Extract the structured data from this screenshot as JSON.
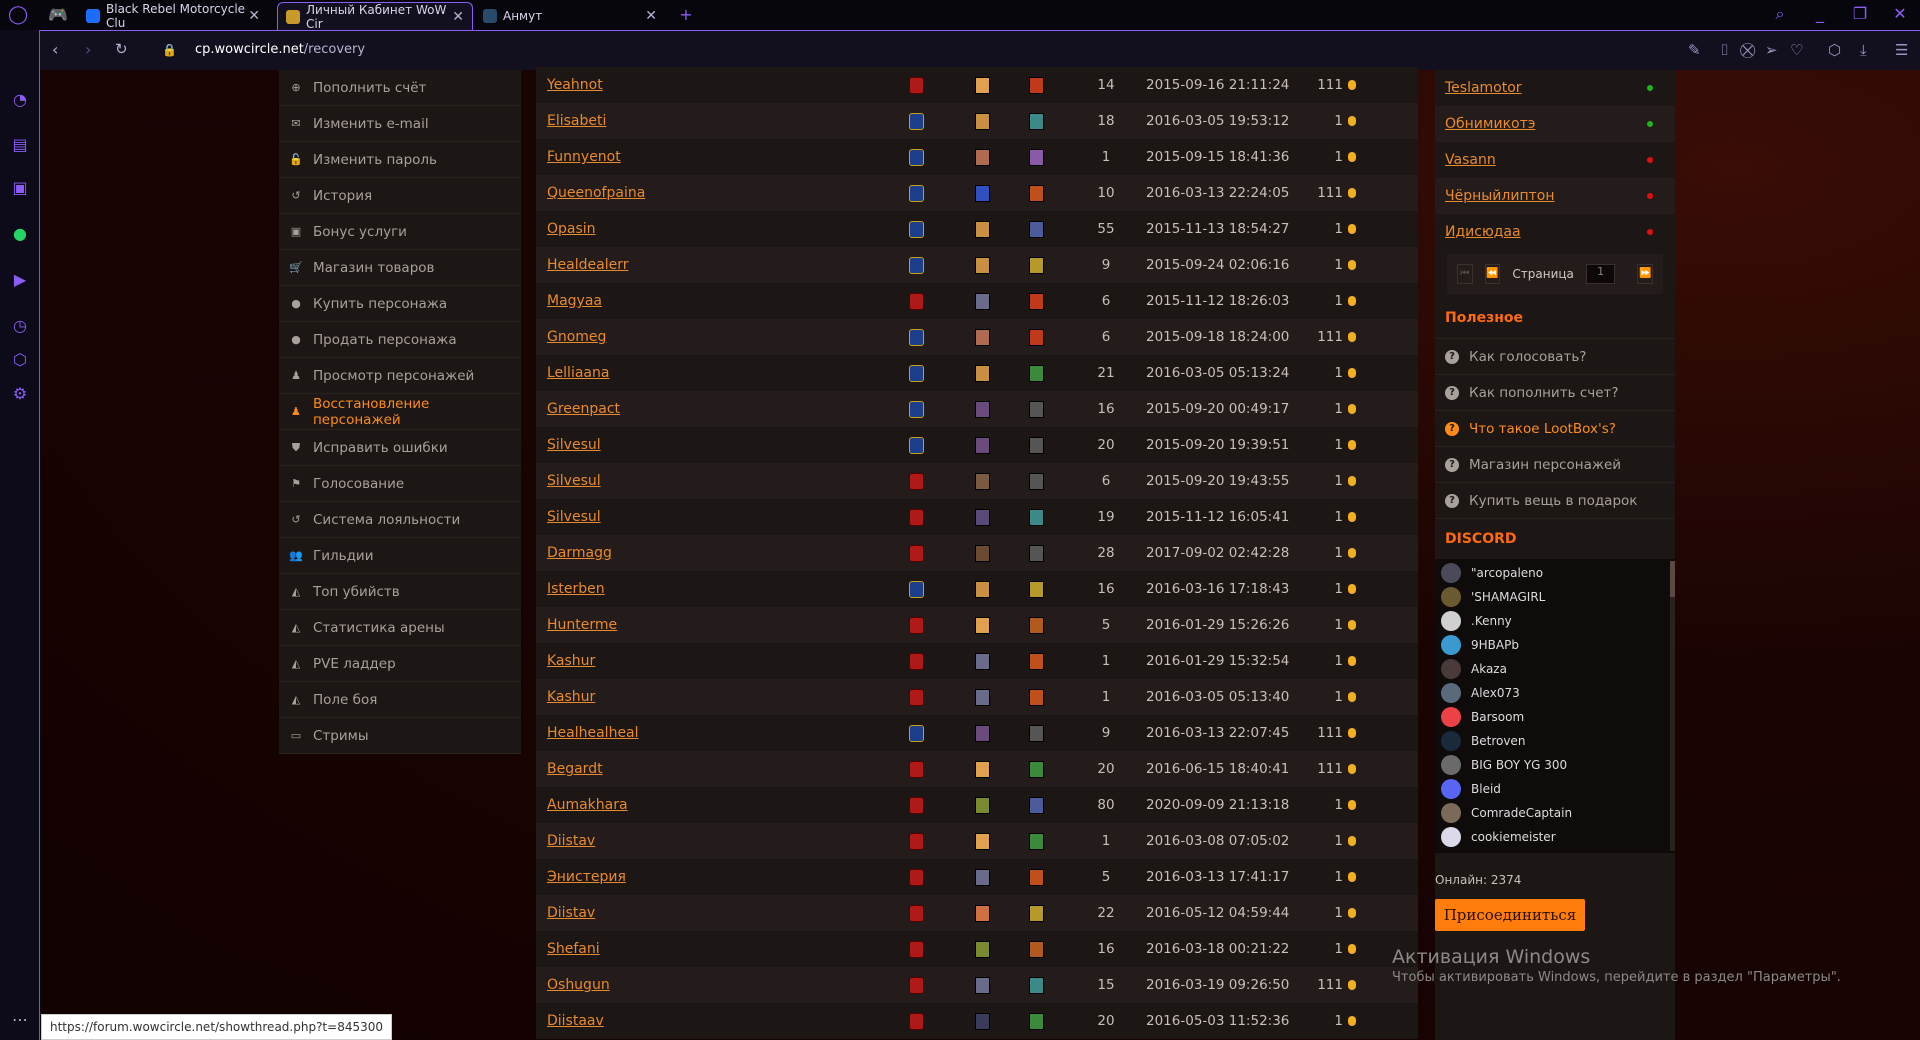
{
  "browser": {
    "tabs": [
      {
        "title": "Black Rebel Motorcycle Clu",
        "icon_color": "#1a6dff",
        "active": false
      },
      {
        "title": "Личный Кабинет WoW Cir",
        "icon_color": "#c89a2a",
        "active": true
      },
      {
        "title": "Анмут",
        "icon_color": "#2a4a6a",
        "active": false
      }
    ],
    "url_host": "cp.wowcircle.net",
    "url_path": "/recovery",
    "status_url": "https://forum.wowcircle.net/showthread.php?t=845300"
  },
  "menu": [
    {
      "label": "Пополнить счёт",
      "icon": "plus-circle-icon",
      "glyph": "⊕"
    },
    {
      "label": "Изменить e-mail",
      "icon": "envelope-icon",
      "glyph": "✉"
    },
    {
      "label": "Изменить пароль",
      "icon": "unlock-icon",
      "glyph": "🔓"
    },
    {
      "label": "История",
      "icon": "history-icon",
      "glyph": "↺"
    },
    {
      "label": "Бонус услуги",
      "icon": "gift-icon",
      "glyph": "▣"
    },
    {
      "label": "Магазин товаров",
      "icon": "cart-icon",
      "glyph": "🛒"
    },
    {
      "label": "Купить персонажа",
      "icon": "user-icon",
      "glyph": "●"
    },
    {
      "label": "Продать персонажа",
      "icon": "user-icon",
      "glyph": "●"
    },
    {
      "label": "Просмотр персонажей",
      "icon": "person-icon",
      "glyph": "♟"
    },
    {
      "label": "Восстановление персонажей",
      "icon": "person-icon",
      "glyph": "♟",
      "active": true
    },
    {
      "label": "Исправить ошибки",
      "icon": "shield-icon",
      "glyph": "⛊"
    },
    {
      "label": "Голосование",
      "icon": "flag-icon",
      "glyph": "⚑"
    },
    {
      "label": "Система лояльности",
      "icon": "history-icon",
      "glyph": "↺"
    },
    {
      "label": "Гильдии",
      "icon": "group-icon",
      "glyph": "👥"
    },
    {
      "label": "Топ убийств",
      "icon": "area-chart-icon",
      "glyph": "◭"
    },
    {
      "label": "Статистика арены",
      "icon": "area-chart-icon",
      "glyph": "◭"
    },
    {
      "label": "PVE ладдер",
      "icon": "area-chart-icon",
      "glyph": "◭"
    },
    {
      "label": "Поле боя",
      "icon": "area-chart-icon",
      "glyph": "◭"
    },
    {
      "label": "Стримы",
      "icon": "twitch-icon",
      "glyph": "▭"
    }
  ],
  "characters": [
    {
      "name": "Yeahnot",
      "faction": "horde",
      "race_color": "#e0a050",
      "class_color": "#c0391b",
      "level": "14",
      "date": "2015-09-16 21:11:24",
      "price": "111"
    },
    {
      "name": "Elisabeti",
      "faction": "alliance",
      "race_color": "#c89040",
      "class_color": "#3a8a8a",
      "level": "18",
      "date": "2016-03-05 19:53:12",
      "price": "1"
    },
    {
      "name": "Funnyenot",
      "faction": "alliance",
      "race_color": "#b06a50",
      "class_color": "#8a5aa8",
      "level": "1",
      "date": "2015-09-15 18:41:36",
      "price": "1"
    },
    {
      "name": "Queenofpaina",
      "faction": "alliance",
      "race_color": "#3050c0",
      "class_color": "#c0501a",
      "level": "10",
      "date": "2016-03-13 22:24:05",
      "price": "111"
    },
    {
      "name": "Opasin",
      "faction": "alliance",
      "race_color": "#c89040",
      "class_color": "#4a5a9a",
      "level": "55",
      "date": "2015-11-13 18:54:27",
      "price": "1"
    },
    {
      "name": "Healdealerr",
      "faction": "alliance",
      "race_color": "#c89040",
      "class_color": "#b59a2a",
      "level": "9",
      "date": "2015-09-24 02:06:16",
      "price": "1"
    },
    {
      "name": "Magyaa",
      "faction": "horde",
      "race_color": "#6a6a8a",
      "class_color": "#c0391b",
      "level": "6",
      "date": "2015-11-12 18:26:03",
      "price": "1"
    },
    {
      "name": "Gnomeg",
      "faction": "alliance",
      "race_color": "#b06a50",
      "class_color": "#c0391b",
      "level": "6",
      "date": "2015-09-18 18:24:00",
      "price": "111"
    },
    {
      "name": "Lelliaana",
      "faction": "alliance",
      "race_color": "#c89040",
      "class_color": "#3a8a3a",
      "level": "21",
      "date": "2016-03-05 05:13:24",
      "price": "1"
    },
    {
      "name": "Greenpact",
      "faction": "alliance",
      "race_color": "#6a4a7a",
      "class_color": "#555555",
      "level": "16",
      "date": "2015-09-20 00:49:17",
      "price": "1"
    },
    {
      "name": "Silvesul",
      "faction": "alliance",
      "race_color": "#6a4a7a",
      "class_color": "#555555",
      "level": "20",
      "date": "2015-09-20 19:39:51",
      "price": "1"
    },
    {
      "name": "Silvesul",
      "faction": "horde",
      "race_color": "#7a5a40",
      "class_color": "#555555",
      "level": "6",
      "date": "2015-09-20 19:43:55",
      "price": "1"
    },
    {
      "name": "Silvesul",
      "faction": "horde",
      "race_color": "#5a4a7a",
      "class_color": "#3a8a8a",
      "level": "19",
      "date": "2015-11-12 16:05:41",
      "price": "1"
    },
    {
      "name": "Darmagg",
      "faction": "horde",
      "race_color": "#6a4a30",
      "class_color": "#555555",
      "level": "28",
      "date": "2017-09-02 02:42:28",
      "price": "1"
    },
    {
      "name": "Isterben",
      "faction": "alliance",
      "race_color": "#c89040",
      "class_color": "#b59a2a",
      "level": "16",
      "date": "2016-03-16 17:18:43",
      "price": "1"
    },
    {
      "name": "Hunterme",
      "faction": "horde",
      "race_color": "#e0a050",
      "class_color": "#b05a20",
      "level": "5",
      "date": "2016-01-29 15:26:26",
      "price": "1"
    },
    {
      "name": "Kashur",
      "faction": "horde",
      "race_color": "#6a6a8a",
      "class_color": "#c0501a",
      "level": "1",
      "date": "2016-01-29 15:32:54",
      "price": "1"
    },
    {
      "name": "Kashur",
      "faction": "horde",
      "race_color": "#6a6a8a",
      "class_color": "#c0501a",
      "level": "1",
      "date": "2016-03-05 05:13:40",
      "price": "1"
    },
    {
      "name": "Healhealheal",
      "faction": "alliance",
      "race_color": "#6a4a7a",
      "class_color": "#555555",
      "level": "9",
      "date": "2016-03-13 22:07:45",
      "price": "111"
    },
    {
      "name": "Begardt",
      "faction": "horde",
      "race_color": "#e0a050",
      "class_color": "#3a8a3a",
      "level": "20",
      "date": "2016-06-15 18:40:41",
      "price": "111"
    },
    {
      "name": "Aumakhara",
      "faction": "horde",
      "race_color": "#7a8a30",
      "class_color": "#4a5a9a",
      "level": "80",
      "date": "2020-09-09 21:13:18",
      "price": "1"
    },
    {
      "name": "Diistav",
      "faction": "horde",
      "race_color": "#e0a050",
      "class_color": "#3a8a3a",
      "level": "1",
      "date": "2016-03-08 07:05:02",
      "price": "1"
    },
    {
      "name": "Энистерия",
      "faction": "horde",
      "race_color": "#6a6a8a",
      "class_color": "#c0501a",
      "level": "5",
      "date": "2016-03-13 17:41:17",
      "price": "1"
    },
    {
      "name": "Diistav",
      "faction": "horde",
      "race_color": "#d07040",
      "class_color": "#b59a2a",
      "level": "22",
      "date": "2016-05-12 04:59:44",
      "price": "1"
    },
    {
      "name": "Shefani",
      "faction": "horde",
      "race_color": "#7a8a30",
      "class_color": "#b05a20",
      "level": "16",
      "date": "2016-03-18 00:21:22",
      "price": "1"
    },
    {
      "name": "Oshugun",
      "faction": "horde",
      "race_color": "#6a6a8a",
      "class_color": "#3a8a8a",
      "level": "15",
      "date": "2016-03-19 09:26:50",
      "price": "111"
    },
    {
      "name": "Diistaav",
      "faction": "horde",
      "race_color": "#3a3a5a",
      "class_color": "#3a8a3a",
      "level": "20",
      "date": "2016-05-03 11:52:36",
      "price": "1"
    }
  ],
  "players": [
    {
      "name": "Teslamotor",
      "online": true
    },
    {
      "name": "Обнимикотэ",
      "online": true
    },
    {
      "name": "Vasann",
      "online": false
    },
    {
      "name": "Чёрныйлиптон",
      "online": false
    },
    {
      "name": "Идисюдаа",
      "online": false
    }
  ],
  "pager": {
    "label": "Страница",
    "page": "1"
  },
  "useful": {
    "title": "Полезное",
    "links": [
      {
        "label": "Как голосовать?"
      },
      {
        "label": "Как пополнить счет?"
      },
      {
        "label": "Что такое LootBox's?",
        "highlight": true
      },
      {
        "label": "Магазин персонажей"
      },
      {
        "label": "Купить вещь в подарок"
      }
    ]
  },
  "discord": {
    "title": "DISCORD",
    "members": [
      {
        "name": "\"arcopaleno",
        "color": "#4a4a5a"
      },
      {
        "name": "'SHAMAGIRL",
        "color": "#6a5a30"
      },
      {
        "name": ".Kenny",
        "color": "#d0d0d0"
      },
      {
        "name": "9HBAPb",
        "color": "#3a9ad0"
      },
      {
        "name": "Akaza",
        "color": "#4a3a3a"
      },
      {
        "name": "Alex073",
        "color": "#5a6a7a"
      },
      {
        "name": "Barsoom",
        "color": "#ed4245"
      },
      {
        "name": "Betroven",
        "color": "#1a2a3a"
      },
      {
        "name": "BIG BOY YG 300",
        "color": "#6a6a6a"
      },
      {
        "name": "Bleid",
        "color": "#5865f2"
      },
      {
        "name": "ComradeCaptain",
        "color": "#7a6a5a"
      },
      {
        "name": "cookiemeister",
        "color": "#dadaea"
      }
    ],
    "online": "Онлайн: 2374",
    "join": "Присоединиться"
  },
  "watermark": {
    "title": "Активация Windows",
    "text": "Чтобы активировать Windows, перейдите в раздел \"Параметры\"."
  },
  "colors": {
    "accent": "#ff8c1a",
    "link": "#e88a2e",
    "horde": "#b0191a",
    "alliance": "#1d3f8a",
    "online": "#1fb31f",
    "offline": "#e01010",
    "browser_accent": "#8b5cf6"
  }
}
